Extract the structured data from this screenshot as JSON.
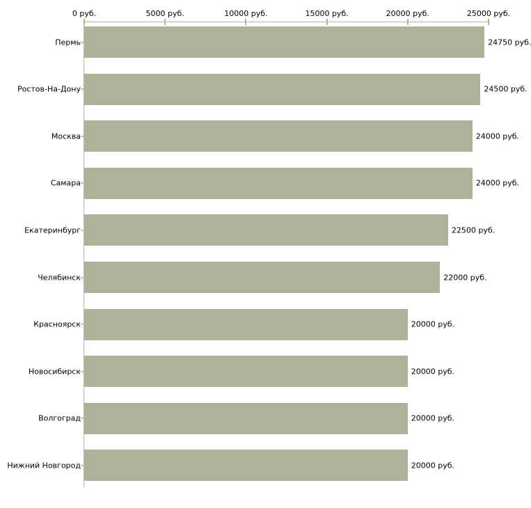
{
  "chart_data": {
    "type": "bar",
    "orientation": "horizontal",
    "title": "",
    "xlabel": "",
    "ylabel": "",
    "unit": "руб.",
    "categories": [
      "Пермь",
      "Ростов-На-Дону",
      "Москва",
      "Самара",
      "Екатеринбург",
      "Челябинск",
      "Красноярск",
      "Новосибирск",
      "Волгоград",
      "Нижний Новгород"
    ],
    "values": [
      24750,
      24500,
      24000,
      24000,
      22500,
      22000,
      20000,
      20000,
      20000,
      20000
    ],
    "value_labels": [
      "24750 руб.",
      "24500 руб.",
      "24000 руб.",
      "24000 руб.",
      "22500 руб.",
      "22000 руб.",
      "20000 руб.",
      "20000 руб.",
      "20000 руб.",
      "20000 руб."
    ],
    "x_axis": {
      "position": "top",
      "min": 0,
      "max": 25000,
      "ticks": [
        0,
        5000,
        10000,
        15000,
        20000,
        25000
      ],
      "tick_labels": [
        "0 руб.",
        "5000 руб.",
        "10000 руб.",
        "15000 руб.",
        "20000 руб.",
        "25000 руб."
      ]
    },
    "legend": null,
    "grid": false,
    "colors": {
      "bar": "#adb399",
      "axis_line": "#b3b3b3",
      "axis_tick": "#b5b581",
      "category_tick": "#c6c6a3",
      "text": "#000000",
      "background": "#ffffff"
    }
  }
}
